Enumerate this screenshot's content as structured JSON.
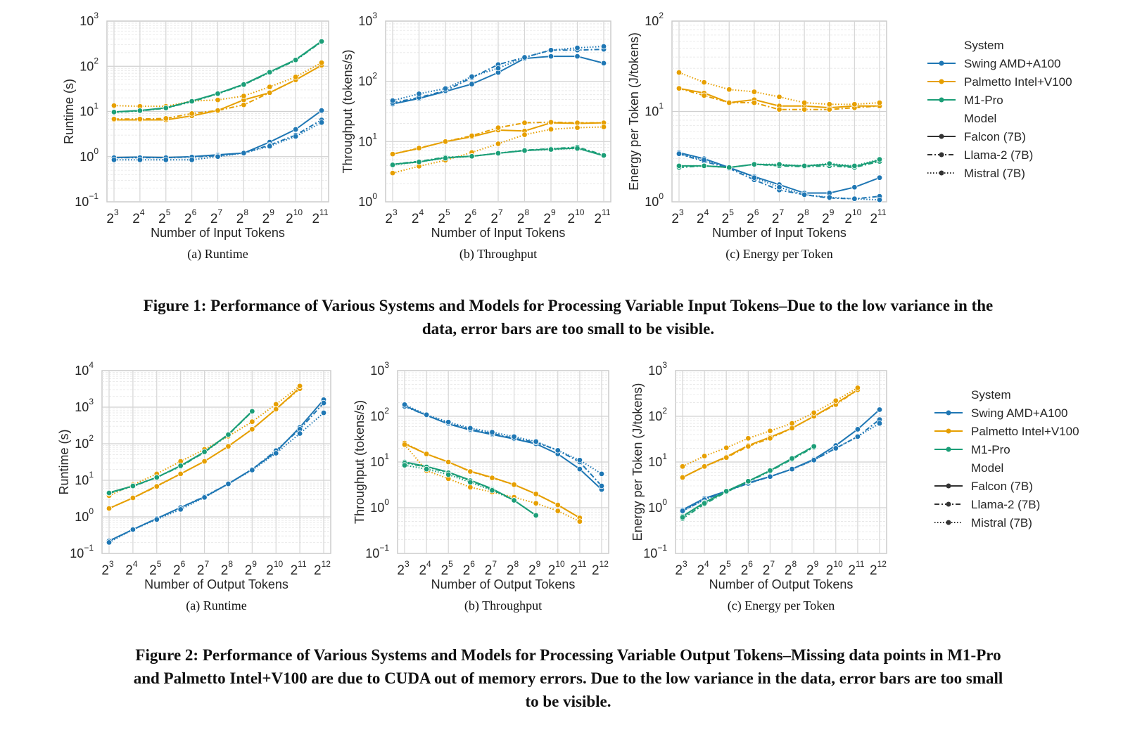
{
  "legend": {
    "system_title": "System",
    "model_title": "Model",
    "systems": [
      {
        "name": "Swing AMD+A100",
        "color": "#1f77b4"
      },
      {
        "name": "Palmetto Intel+V100",
        "color": "#e69f00"
      },
      {
        "name": "M1-Pro",
        "color": "#1b9e77"
      }
    ],
    "models": [
      {
        "name": "Falcon (7B)",
        "dash": "solid"
      },
      {
        "name": "Llama-2 (7B)",
        "dash": "dashdot"
      },
      {
        "name": "Mistral (7B)",
        "dash": "dotted"
      }
    ]
  },
  "figure1": {
    "caption_line1": "Figure 1: Performance of Various Systems and Models for Processing Variable Input Tokens–Due to the low variance in the",
    "caption_line2": "data, error bars are too small to be visible."
  },
  "figure2": {
    "caption_line1": "Figure 2: Performance of Various Systems and Models for Processing Variable Output Tokens–Missing data points in M1-Pro",
    "caption_line2": "and Palmetto Intel+V100 are due to CUDA out of memory errors. Due to the low variance in the data, error bars are too small",
    "caption_line3": "to be visible."
  },
  "chart_data": [
    {
      "id": "fig1a",
      "type": "line",
      "subcaption": "(a)  Runtime",
      "xlabel": "Number of Input Tokens",
      "ylabel": "Runtime (s)",
      "yscale": "log",
      "ylim_exp": [
        -1,
        3
      ],
      "x_exponents": [
        3,
        4,
        5,
        6,
        7,
        8,
        9,
        10,
        11
      ],
      "grid": true,
      "series": [
        {
          "system": "Swing AMD+A100",
          "model": "Falcon (7B)",
          "values": [
            0.95,
            0.98,
            0.95,
            1.0,
            1.1,
            1.2,
            2.1,
            4.0,
            10.5
          ]
        },
        {
          "system": "Swing AMD+A100",
          "model": "Llama-2 (7B)",
          "values": [
            0.95,
            0.95,
            0.95,
            0.98,
            1.05,
            1.2,
            1.8,
            3.0,
            6.5
          ]
        },
        {
          "system": "Swing AMD+A100",
          "model": "Mistral (7B)",
          "values": [
            0.85,
            0.85,
            0.85,
            0.85,
            1.0,
            1.2,
            1.7,
            2.8,
            5.7
          ]
        },
        {
          "system": "Palmetto Intel+V100",
          "model": "Falcon (7B)",
          "values": [
            6.5,
            6.5,
            6.5,
            8,
            10.5,
            18,
            26,
            50,
            105
          ]
        },
        {
          "system": "Palmetto Intel+V100",
          "model": "Llama-2 (7B)",
          "values": [
            6.8,
            6.8,
            7,
            9,
            10.5,
            14,
            26,
            50,
            105
          ]
        },
        {
          "system": "Palmetto Intel+V100",
          "model": "Mistral (7B)",
          "values": [
            13.5,
            13,
            13,
            17,
            18,
            22,
            35,
            58,
            120
          ]
        },
        {
          "system": "M1-Pro",
          "model": "Falcon (7B)",
          "values": [
            9.8,
            10.5,
            12,
            17,
            25,
            40,
            75,
            140,
            360
          ]
        },
        {
          "system": "M1-Pro",
          "model": "Llama-2 (7B)",
          "values": [
            9.6,
            10.3,
            11.8,
            16.5,
            24.5,
            39,
            73,
            135,
            350
          ]
        },
        {
          "system": "M1-Pro",
          "model": "Mistral (7B)",
          "values": [
            9.7,
            10.4,
            11.9,
            16.8,
            24.8,
            39.5,
            74,
            138,
            355
          ]
        }
      ]
    },
    {
      "id": "fig1b",
      "type": "line",
      "subcaption": "(b)  Throughput",
      "xlabel": "Number of Input Tokens",
      "ylabel": "Throughput (tokens/s)",
      "yscale": "log",
      "ylim_exp": [
        0,
        3
      ],
      "x_exponents": [
        3,
        4,
        5,
        6,
        7,
        8,
        9,
        10,
        11
      ],
      "grid": true,
      "series": [
        {
          "system": "Swing AMD+A100",
          "model": "Falcon (7B)",
          "values": [
            42,
            52,
            68,
            90,
            140,
            240,
            260,
            260,
            200
          ]
        },
        {
          "system": "Swing AMD+A100",
          "model": "Llama-2 (7B)",
          "values": [
            44,
            54,
            70,
            115,
            190,
            250,
            330,
            330,
            340
          ]
        },
        {
          "system": "Swing AMD+A100",
          "model": "Mistral (7B)",
          "values": [
            48,
            62,
            76,
            120,
            165,
            250,
            330,
            360,
            380
          ]
        },
        {
          "system": "Palmetto Intel+V100",
          "model": "Falcon (7B)",
          "values": [
            6.2,
            7.7,
            10,
            12,
            15.5,
            15,
            20.5,
            20,
            20.5
          ]
        },
        {
          "system": "Palmetto Intel+V100",
          "model": "Llama-2 (7B)",
          "values": [
            6.2,
            7.8,
            10,
            12.5,
            17,
            20.5,
            21,
            20.5,
            20.5
          ]
        },
        {
          "system": "Palmetto Intel+V100",
          "model": "Mistral (7B)",
          "values": [
            3.0,
            3.9,
            4.9,
            6.6,
            9.2,
            13,
            16,
            17,
            17.5
          ]
        },
        {
          "system": "M1-Pro",
          "model": "Falcon (7B)",
          "values": [
            4.2,
            4.6,
            5.4,
            5.7,
            6.4,
            7.1,
            7.5,
            7.8,
            5.8
          ]
        },
        {
          "system": "M1-Pro",
          "model": "Llama-2 (7B)",
          "values": [
            4.2,
            4.7,
            5.5,
            5.7,
            6.4,
            7.2,
            7.6,
            8.1,
            6.0
          ]
        },
        {
          "system": "M1-Pro",
          "model": "Mistral (7B)",
          "values": [
            4.1,
            4.6,
            5.3,
            5.7,
            6.4,
            7.1,
            7.4,
            7.7,
            5.9
          ]
        }
      ]
    },
    {
      "id": "fig1c",
      "type": "line",
      "subcaption": "(c)  Energy per Token",
      "xlabel": "Number of Input Tokens",
      "ylabel": "Energy per Token (J/tokens)",
      "yscale": "log",
      "ylim_exp": [
        0,
        2
      ],
      "x_exponents": [
        3,
        4,
        5,
        6,
        7,
        8,
        9,
        10,
        11
      ],
      "grid": true,
      "series": [
        {
          "system": "Swing AMD+A100",
          "model": "Falcon (7B)",
          "values": [
            3.5,
            3.0,
            2.4,
            1.9,
            1.55,
            1.25,
            1.25,
            1.45,
            1.85
          ]
        },
        {
          "system": "Swing AMD+A100",
          "model": "Llama-2 (7B)",
          "values": [
            3.4,
            2.8,
            2.35,
            1.75,
            1.35,
            1.2,
            1.1,
            1.08,
            1.15
          ]
        },
        {
          "system": "Swing AMD+A100",
          "model": "Mistral (7B)",
          "values": [
            3.4,
            2.9,
            2.4,
            1.85,
            1.45,
            1.2,
            1.12,
            1.08,
            1.05
          ]
        },
        {
          "system": "Palmetto Intel+V100",
          "model": "Falcon (7B)",
          "values": [
            18,
            16,
            12.5,
            13.5,
            11.5,
            11.5,
            11,
            11.5,
            11.5
          ]
        },
        {
          "system": "Palmetto Intel+V100",
          "model": "Llama-2 (7B)",
          "values": [
            18,
            15,
            12.5,
            12.5,
            10.5,
            10.5,
            10.5,
            11,
            11.5
          ]
        },
        {
          "system": "Palmetto Intel+V100",
          "model": "Mistral (7B)",
          "values": [
            27,
            21,
            17.5,
            16.5,
            14.5,
            12.5,
            12,
            12,
            12.5
          ]
        },
        {
          "system": "M1-Pro",
          "model": "Falcon (7B)",
          "values": [
            2.5,
            2.5,
            2.4,
            2.6,
            2.55,
            2.5,
            2.6,
            2.45,
            2.9
          ]
        },
        {
          "system": "M1-Pro",
          "model": "Llama-2 (7B)",
          "values": [
            2.4,
            2.5,
            2.4,
            2.6,
            2.5,
            2.45,
            2.5,
            2.4,
            2.8
          ]
        },
        {
          "system": "M1-Pro",
          "model": "Mistral (7B)",
          "values": [
            2.5,
            2.5,
            2.4,
            2.6,
            2.6,
            2.5,
            2.65,
            2.5,
            2.95
          ]
        }
      ]
    },
    {
      "id": "fig2a",
      "type": "line",
      "subcaption": "(a)  Runtime",
      "xlabel": "Number of Output Tokens",
      "ylabel": "Runtime (s)",
      "yscale": "log",
      "ylim_exp": [
        -1,
        4
      ],
      "x_exponents": [
        3,
        4,
        5,
        6,
        7,
        8,
        9,
        10,
        11,
        12
      ],
      "grid": true,
      "series": [
        {
          "system": "Swing AMD+A100",
          "model": "Falcon (7B)",
          "values": [
            0.22,
            0.45,
            0.9,
            1.8,
            3.5,
            8,
            20,
            60,
            280,
            1600
          ]
        },
        {
          "system": "Swing AMD+A100",
          "model": "Llama-2 (7B)",
          "values": [
            0.22,
            0.45,
            0.9,
            1.8,
            3.6,
            8,
            20,
            65,
            250,
            1300
          ]
        },
        {
          "system": "Swing AMD+A100",
          "model": "Mistral (7B)",
          "values": [
            0.2,
            0.45,
            0.85,
            1.6,
            3.4,
            8,
            19,
            55,
            190,
            700
          ]
        },
        {
          "system": "Palmetto Intel+V100",
          "model": "Falcon (7B)",
          "values": [
            1.7,
            3.3,
            7,
            15,
            33,
            85,
            250,
            880,
            3400
          ]
        },
        {
          "system": "Palmetto Intel+V100",
          "model": "Llama-2 (7B)",
          "values": [
            1.7,
            3.3,
            6.8,
            15,
            33,
            85,
            250,
            880,
            3200
          ]
        },
        {
          "system": "Palmetto Intel+V100",
          "model": "Mistral (7B)",
          "values": [
            3.8,
            7.5,
            15,
            33,
            70,
            160,
            400,
            1200,
            3800
          ]
        },
        {
          "system": "M1-Pro",
          "model": "Falcon (7B)",
          "values": [
            4.6,
            7,
            12,
            25,
            60,
            180,
            780
          ]
        },
        {
          "system": "M1-Pro",
          "model": "Llama-2 (7B)",
          "values": [
            4.4,
            6.8,
            12,
            24,
            58,
            175,
            760
          ]
        },
        {
          "system": "M1-Pro",
          "model": "Mistral (7B)",
          "values": [
            4.5,
            7,
            12,
            25,
            60,
            178,
            770
          ]
        }
      ]
    },
    {
      "id": "fig2b",
      "type": "line",
      "subcaption": "(b)  Throughput",
      "xlabel": "Number of Output Tokens",
      "ylabel": "Throughput (tokens/s)",
      "yscale": "log",
      "ylim_exp": [
        -1,
        3
      ],
      "x_exponents": [
        3,
        4,
        5,
        6,
        7,
        8,
        9,
        10,
        11,
        12
      ],
      "grid": true,
      "series": [
        {
          "system": "Swing AMD+A100",
          "model": "Falcon (7B)",
          "values": [
            170,
            105,
            68,
            50,
            40,
            32,
            25,
            15,
            7,
            2.5
          ]
        },
        {
          "system": "Swing AMD+A100",
          "model": "Llama-2 (7B)",
          "values": [
            165,
            105,
            70,
            52,
            42,
            33,
            27,
            18,
            10,
            3
          ]
        },
        {
          "system": "Swing AMD+A100",
          "model": "Mistral (7B)",
          "values": [
            180,
            108,
            75,
            55,
            45,
            36,
            28,
            18,
            11,
            5.5
          ]
        },
        {
          "system": "Palmetto Intel+V100",
          "model": "Falcon (7B)",
          "values": [
            25,
            15,
            10,
            6.3,
            4.6,
            3.2,
            2.0,
            1.15,
            0.6
          ]
        },
        {
          "system": "Palmetto Intel+V100",
          "model": "Llama-2 (7B)",
          "values": [
            26,
            15,
            10,
            6.2,
            4.5,
            3.2,
            2.0,
            1.15,
            0.6
          ]
        },
        {
          "system": "Palmetto Intel+V100",
          "model": "Mistral (7B)",
          "values": [
            24,
            6.5,
            4.3,
            2.8,
            2.2,
            1.7,
            1.25,
            0.85,
            0.5
          ]
        },
        {
          "system": "M1-Pro",
          "model": "Falcon (7B)",
          "values": [
            10,
            8,
            6,
            4,
            2.6,
            1.45,
            0.68
          ]
        },
        {
          "system": "M1-Pro",
          "model": "Llama-2 (7B)",
          "values": [
            9.5,
            7.8,
            5.8,
            3.9,
            2.5,
            1.45,
            0.68
          ]
        },
        {
          "system": "M1-Pro",
          "model": "Mistral (7B)",
          "values": [
            8.5,
            7,
            5.3,
            3.6,
            2.4,
            1.45,
            0.68
          ]
        }
      ]
    },
    {
      "id": "fig2c",
      "type": "line",
      "subcaption": "(c)  Energy per Token",
      "xlabel": "Number of Output Tokens",
      "ylabel": "Energy per Token (J/tokens)",
      "yscale": "log",
      "ylim_exp": [
        -1,
        3
      ],
      "x_exponents": [
        3,
        4,
        5,
        6,
        7,
        8,
        9,
        10,
        11,
        12
      ],
      "grid": true,
      "series": [
        {
          "system": "Swing AMD+A100",
          "model": "Falcon (7B)",
          "values": [
            0.9,
            1.6,
            2.3,
            3.5,
            4.8,
            7,
            11.5,
            23,
            52,
            140
          ]
        },
        {
          "system": "Swing AMD+A100",
          "model": "Llama-2 (7B)",
          "values": [
            0.85,
            1.5,
            2.3,
            3.4,
            4.8,
            7,
            11,
            20,
            36,
            85
          ]
        },
        {
          "system": "Swing AMD+A100",
          "model": "Mistral (7B)",
          "values": [
            0.85,
            1.5,
            2.3,
            3.4,
            4.8,
            7,
            11,
            20,
            36,
            70
          ]
        },
        {
          "system": "Palmetto Intel+V100",
          "model": "Falcon (7B)",
          "values": [
            4.6,
            8,
            13,
            23,
            35,
            55,
            100,
            190,
            380
          ]
        },
        {
          "system": "Palmetto Intel+V100",
          "model": "Llama-2 (7B)",
          "values": [
            4.6,
            8,
            12.5,
            22,
            33,
            55,
            100,
            180,
            380
          ]
        },
        {
          "system": "Palmetto Intel+V100",
          "model": "Mistral (7B)",
          "values": [
            8,
            13.5,
            20.5,
            33,
            48,
            70,
            120,
            220,
            420
          ]
        },
        {
          "system": "M1-Pro",
          "model": "Falcon (7B)",
          "values": [
            0.65,
            1.3,
            2.3,
            3.8,
            6.5,
            12,
            22
          ]
        },
        {
          "system": "M1-Pro",
          "model": "Llama-2 (7B)",
          "values": [
            0.58,
            1.2,
            2.2,
            3.7,
            6.3,
            11.5,
            21
          ]
        },
        {
          "system": "M1-Pro",
          "model": "Mistral (7B)",
          "values": [
            0.62,
            1.25,
            2.3,
            3.8,
            6.5,
            12,
            22
          ]
        }
      ]
    }
  ]
}
